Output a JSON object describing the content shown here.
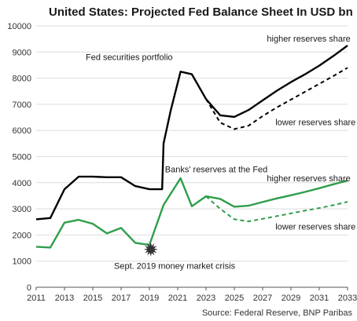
{
  "chart_data": {
    "type": "line",
    "title": "United States: Projected Fed Balance Sheet In USD bn",
    "source": "Source: Federal Reserve, BNP Paribas",
    "xlim": [
      2011,
      2033
    ],
    "ylim": [
      0,
      10000
    ],
    "x_ticks": [
      "2011",
      "2013",
      "2015",
      "2017",
      "2019",
      "2021",
      "2023",
      "2025",
      "2027",
      "2029",
      "2031",
      "2033"
    ],
    "y_ticks": [
      "0",
      "1000",
      "2000",
      "3000",
      "4000",
      "5000",
      "6000",
      "7000",
      "8000",
      "9000",
      "10000"
    ],
    "grid": "horizontal",
    "series": [
      {
        "name": "Fed securities portfolio",
        "color": "#000000",
        "style": "solid",
        "points": [
          [
            2011,
            2600
          ],
          [
            2012,
            2650
          ],
          [
            2013,
            3750
          ],
          [
            2014,
            4230
          ],
          [
            2015,
            4230
          ],
          [
            2016,
            4210
          ],
          [
            2017,
            4210
          ],
          [
            2018,
            3870
          ],
          [
            2019,
            3750
          ],
          [
            2019.9,
            3750
          ],
          [
            2020,
            5500
          ],
          [
            2020.5,
            6750
          ],
          [
            2021.2,
            8250
          ],
          [
            2022,
            8150
          ],
          [
            2023,
            7200
          ],
          [
            2024,
            6580
          ],
          [
            2025,
            6520
          ],
          [
            2026,
            6780
          ],
          [
            2027,
            7150
          ],
          [
            2028,
            7520
          ],
          [
            2029,
            7850
          ],
          [
            2030,
            8150
          ],
          [
            2031,
            8480
          ],
          [
            2032,
            8850
          ],
          [
            2033,
            9250
          ]
        ]
      },
      {
        "name": "lower reserves share",
        "color": "#000000",
        "style": "dashed",
        "points": [
          [
            2023,
            7200
          ],
          [
            2024,
            6300
          ],
          [
            2025,
            6050
          ],
          [
            2026,
            6180
          ],
          [
            2027,
            6550
          ],
          [
            2028,
            6880
          ],
          [
            2029,
            7180
          ],
          [
            2030,
            7480
          ],
          [
            2031,
            7780
          ],
          [
            2032,
            8080
          ],
          [
            2033,
            8400
          ]
        ]
      },
      {
        "name": "Banks' reserves at the Fed",
        "color": "#2e9e4a",
        "style": "solid",
        "points": [
          [
            2011,
            1550
          ],
          [
            2012,
            1520
          ],
          [
            2013,
            2470
          ],
          [
            2014,
            2580
          ],
          [
            2015,
            2430
          ],
          [
            2016,
            2060
          ],
          [
            2017,
            2270
          ],
          [
            2018,
            1700
          ],
          [
            2019,
            1620
          ],
          [
            2020,
            3150
          ],
          [
            2021.2,
            4170
          ],
          [
            2022,
            3100
          ],
          [
            2023,
            3480
          ],
          [
            2024,
            3380
          ],
          [
            2025,
            3080
          ],
          [
            2026,
            3120
          ],
          [
            2027,
            3260
          ],
          [
            2028,
            3400
          ],
          [
            2029,
            3520
          ],
          [
            2030,
            3650
          ],
          [
            2031,
            3790
          ],
          [
            2032,
            3940
          ],
          [
            2033,
            4080
          ]
        ]
      },
      {
        "name": "lower reserves share",
        "color": "#2e9e4a",
        "style": "dashed",
        "points": [
          [
            2023,
            3480
          ],
          [
            2024,
            3000
          ],
          [
            2025,
            2600
          ],
          [
            2026,
            2520
          ],
          [
            2027,
            2620
          ],
          [
            2028,
            2720
          ],
          [
            2029,
            2830
          ],
          [
            2030,
            2930
          ],
          [
            2031,
            3030
          ],
          [
            2032,
            3140
          ],
          [
            2033,
            3270
          ]
        ]
      }
    ],
    "annotations": [
      {
        "text": "Fed securities portfolio",
        "x": 2014.5,
        "y": 8700,
        "color": "#1a1a1a"
      },
      {
        "text": "higher reserves share",
        "x": 2027.3,
        "y": 9400,
        "color": "#1a1a1a"
      },
      {
        "text": "lower reserves share",
        "x": 2027.9,
        "y": 6200,
        "color": "#1a1a1a"
      },
      {
        "text": "Banks' reserves at the Fed",
        "x": 2020.1,
        "y": 4400,
        "color": "#2e9e4a"
      },
      {
        "text": "higher reserves share",
        "x": 2027.3,
        "y": 4050,
        "color": "#1a1a1a"
      },
      {
        "text": "lower reserves share",
        "x": 2027.9,
        "y": 2200,
        "color": "#1a1a1a"
      },
      {
        "text": "Sept. 2019 money market crisis",
        "x": 2016.5,
        "y": 700,
        "color": "#1a1a1a"
      }
    ],
    "marker": {
      "name": "Sept. 2019 money market crisis",
      "x": 2019.1,
      "y": 1450,
      "color": "#333333"
    }
  }
}
